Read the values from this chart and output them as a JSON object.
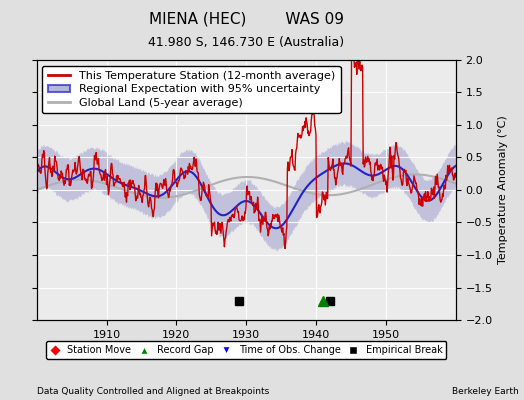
{
  "title_line1": "MIENA (HEC)        WAS 09",
  "title_line2": "41.980 S, 146.730 E (Australia)",
  "ylabel": "Temperature Anomaly (°C)",
  "xlabel_bottom": "Data Quality Controlled and Aligned at Breakpoints",
  "xlabel_right": "Berkeley Earth",
  "ylim": [
    -2,
    2
  ],
  "xlim": [
    1900,
    1960
  ],
  "xticks": [
    1910,
    1920,
    1930,
    1940,
    1950
  ],
  "yticks": [
    -2,
    -1.5,
    -1,
    -0.5,
    0,
    0.5,
    1,
    1.5,
    2
  ],
  "bg_color": "#e0e0e0",
  "plot_bg_color": "#ebebeb",
  "station_color": "#cc0000",
  "regional_color": "#2222cc",
  "global_color": "#b0b0b0",
  "uncertainty_color": "#9999cc",
  "legend_entries": [
    "This Temperature Station (12-month average)",
    "Regional Expectation with 95% uncertainty",
    "Global Land (5-year average)"
  ],
  "marker_events": {
    "empirical_break": [
      1929,
      1942
    ],
    "record_gap": [
      1941
    ],
    "time_obs_change": [],
    "station_move": []
  },
  "title_fontsize": 11,
  "subtitle_fontsize": 9,
  "tick_fontsize": 8,
  "legend_fontsize": 8
}
